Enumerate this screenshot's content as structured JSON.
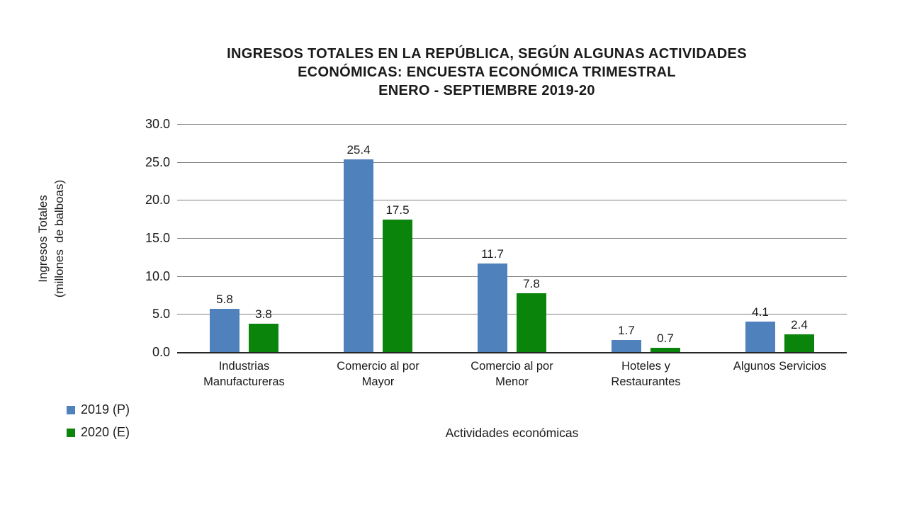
{
  "title": {
    "line1": "INGRESOS TOTALES EN LA REPÚBLICA, SEGÚN ALGUNAS ACTIVIDADES",
    "line2": "ECONÓMICAS: ENCUESTA ECONÓMICA TRIMESTRAL",
    "line3": "ENERO - SEPTIEMBRE 2019-20"
  },
  "y_axis": {
    "label_line1": "Ingresos Totales",
    "label_line2": "(millones  de balboas)",
    "tick_labels": [
      "0.0",
      "5.0",
      "10.0",
      "15.0",
      "20.0",
      "25.0",
      "30.0"
    ]
  },
  "x_axis": {
    "label": "Actividades económicas"
  },
  "colors": {
    "series_2019": "#4F81BD",
    "series_2020": "#0A840A",
    "gridline": "#808080",
    "axis_line": "#262626"
  },
  "chart_data": {
    "type": "bar",
    "title": "INGRESOS TOTALES EN LA REPÚBLICA, SEGÚN ALGUNAS ACTIVIDADES ECONÓMICAS: ENCUESTA ECONÓMICA TRIMESTRAL ENERO - SEPTIEMBRE 2019-20",
    "categories": [
      "Industrias Manufactureras",
      "Comercio al por Mayor",
      "Comercio al por Menor",
      "Hoteles y Restaurantes",
      "Algunos Servicios"
    ],
    "series": [
      {
        "name": "2019 (P)",
        "color": "#4F81BD",
        "values": [
          5.8,
          25.4,
          11.7,
          1.7,
          4.1
        ]
      },
      {
        "name": "2020 (E)",
        "color": "#0A840A",
        "values": [
          3.8,
          17.5,
          7.8,
          0.7,
          2.4
        ]
      }
    ],
    "xlabel": "Actividades económicas",
    "ylabel": "Ingresos Totales (millones de balboas)",
    "ylim": [
      0,
      30
    ],
    "ytick_step": 5,
    "grid": true,
    "data_labels": true,
    "legend_position": "bottom-left"
  }
}
